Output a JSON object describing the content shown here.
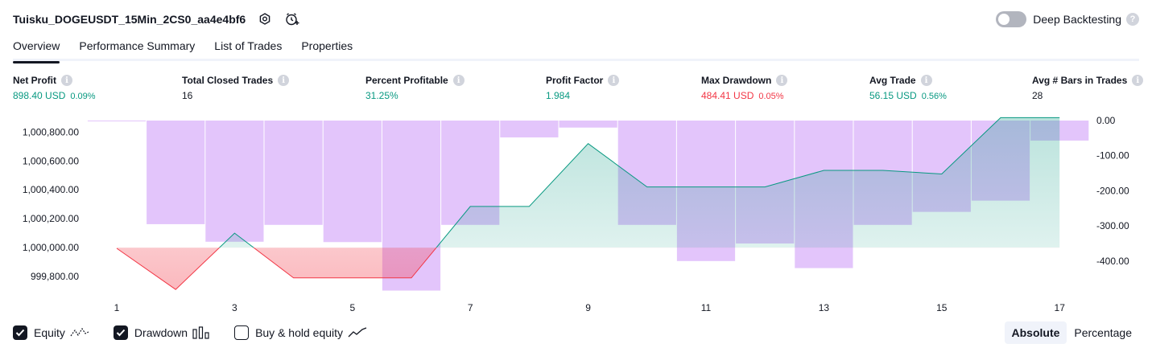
{
  "header": {
    "title": "Tuisku_DOGEUSDT_15Min_2CS0_aa4e4bf6",
    "deep_backtesting_label": "Deep Backtesting"
  },
  "tabs": [
    {
      "label": "Overview",
      "active": true
    },
    {
      "label": "Performance Summary",
      "active": false
    },
    {
      "label": "List of Trades",
      "active": false
    },
    {
      "label": "Properties",
      "active": false
    }
  ],
  "stats": [
    {
      "label": "Net Profit",
      "value": "898.40 USD",
      "pct": "0.09%",
      "color": "#089981"
    },
    {
      "label": "Total Closed Trades",
      "value": "16",
      "pct": "",
      "color": "#131722"
    },
    {
      "label": "Percent Profitable",
      "value": "31.25%",
      "pct": "",
      "color": "#089981"
    },
    {
      "label": "Profit Factor",
      "value": "1.984",
      "pct": "",
      "color": "#089981"
    },
    {
      "label": "Max Drawdown",
      "value": "484.41 USD",
      "pct": "0.05%",
      "color": "#f23645"
    },
    {
      "label": "Avg Trade",
      "value": "56.15 USD",
      "pct": "0.56%",
      "color": "#089981"
    },
    {
      "label": "Avg # Bars in Trades",
      "value": "28",
      "pct": "",
      "color": "#131722"
    }
  ],
  "chart_data": {
    "type": "line",
    "x_tick_labels": [
      "1",
      "3",
      "5",
      "7",
      "9",
      "11",
      "13",
      "15",
      "17"
    ],
    "left_axis_ticks": [
      "1,000,800.00",
      "1,000,600.00",
      "1,000,400.00",
      "1,000,200.00",
      "1,000,000.00",
      "999,800.00"
    ],
    "right_axis_ticks": [
      "0.00",
      "-100.00",
      "-200.00",
      "-300.00",
      "-400.00"
    ],
    "left_ylim": [
      999700,
      1000880
    ],
    "right_ylim": [
      -485,
      0
    ],
    "baseline": 1000000,
    "series": [
      {
        "name": "Equity",
        "axis": "left",
        "color_up": "#089981",
        "color_down": "#f23645",
        "x": [
          1,
          2,
          3,
          4,
          5,
          6,
          7,
          8,
          9,
          10,
          11,
          12,
          13,
          14,
          15,
          16,
          17
        ],
        "values": [
          999995,
          999710,
          1000100,
          999790,
          999790,
          999790,
          1000285,
          1000285,
          1000720,
          1000420,
          1000420,
          1000420,
          1000535,
          1000535,
          1000510,
          1000900,
          1000900
        ]
      },
      {
        "name": "Drawdown",
        "axis": "right",
        "color": "#ce93d8",
        "x": [
          1,
          2,
          3,
          4,
          5,
          6,
          7,
          8,
          9,
          10,
          11,
          12,
          13,
          14,
          15,
          16,
          17
        ],
        "values": [
          -2,
          -295,
          -345,
          -297,
          -346,
          -484,
          -297,
          -48,
          -20,
          -297,
          -400,
          -350,
          -420,
          -297,
          -260,
          -228,
          -57
        ]
      }
    ]
  },
  "legend": [
    {
      "label": "Equity",
      "checked": true
    },
    {
      "label": "Drawdown",
      "checked": true
    },
    {
      "label": "Buy & hold equity",
      "checked": false
    }
  ],
  "mode": {
    "absolute": "Absolute",
    "percentage": "Percentage"
  }
}
